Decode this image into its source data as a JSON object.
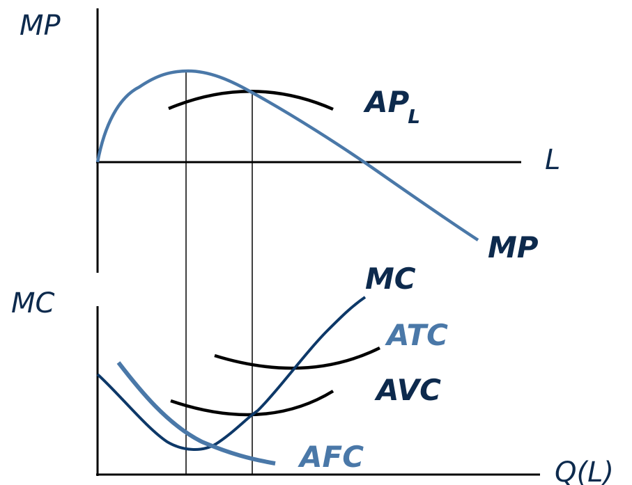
{
  "colors": {
    "axis": "#000000",
    "black_curve": "#000000",
    "mp_curve": "#4a78a8",
    "mc_curve": "#0d3868",
    "afc_curve": "#4a78a8",
    "label_dark": "#0d2a4d",
    "label_blue": "#4a78a8"
  },
  "top_panel": {
    "y_axis_label": "MP",
    "x_axis_label": "L",
    "ap_label_main": "AP",
    "ap_label_sub": "L",
    "mp_label": "MP"
  },
  "bottom_panel": {
    "y_axis_label": "MC",
    "x_axis_label": "Q(L)",
    "mc_label": "MC",
    "atc_label": "ATC",
    "avc_label": "AVC",
    "afc_label": "AFC"
  }
}
